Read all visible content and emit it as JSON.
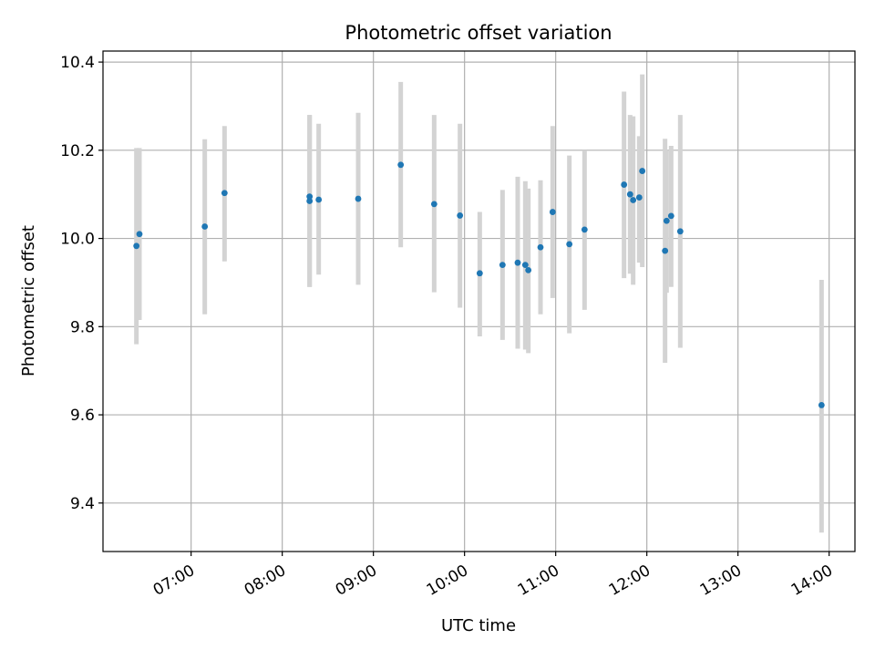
{
  "chart_data": {
    "type": "scatter",
    "title": "Photometric offset variation",
    "xlabel": "UTC time",
    "ylabel": "Photometric offset",
    "x_unit": "time",
    "xlim": [
      "06:02",
      "14:17"
    ],
    "ylim": [
      9.29,
      10.425
    ],
    "grid": true,
    "x_ticks": [
      "07:00",
      "08:00",
      "09:00",
      "10:00",
      "11:00",
      "12:00",
      "13:00",
      "14:00"
    ],
    "y_ticks": [
      "9.4",
      "9.6",
      "9.8",
      "10.0",
      "10.2",
      "10.4"
    ],
    "colors": {
      "marker": "#1f77b4",
      "errorbar": "#d3d3d3",
      "grid": "#b0b0b0"
    },
    "points": [
      {
        "time": "06:24",
        "y": 9.983,
        "y_low": 9.76,
        "y_high": 10.205
      },
      {
        "time": "06:26",
        "y": 10.01,
        "y_low": 9.815,
        "y_high": 10.205
      },
      {
        "time": "07:09",
        "y": 10.027,
        "y_low": 9.828,
        "y_high": 10.225
      },
      {
        "time": "07:22",
        "y": 10.103,
        "y_low": 9.948,
        "y_high": 10.255
      },
      {
        "time": "08:18",
        "y": 10.085,
        "y_low": 9.89,
        "y_high": 10.28
      },
      {
        "time": "08:18",
        "y": 10.095,
        "y_low": 9.89,
        "y_high": 10.28
      },
      {
        "time": "08:24",
        "y": 10.088,
        "y_low": 9.918,
        "y_high": 10.26
      },
      {
        "time": "08:50",
        "y": 10.09,
        "y_low": 9.895,
        "y_high": 10.285
      },
      {
        "time": "09:18",
        "y": 10.167,
        "y_low": 9.98,
        "y_high": 10.355
      },
      {
        "time": "09:40",
        "y": 10.078,
        "y_low": 9.878,
        "y_high": 10.28
      },
      {
        "time": "09:57",
        "y": 10.052,
        "y_low": 9.843,
        "y_high": 10.26
      },
      {
        "time": "10:10",
        "y": 9.921,
        "y_low": 9.778,
        "y_high": 10.06
      },
      {
        "time": "10:25",
        "y": 9.94,
        "y_low": 9.77,
        "y_high": 10.11
      },
      {
        "time": "10:35",
        "y": 9.945,
        "y_low": 9.75,
        "y_high": 10.14
      },
      {
        "time": "10:40",
        "y": 9.94,
        "y_low": 9.748,
        "y_high": 10.13
      },
      {
        "time": "10:42",
        "y": 9.928,
        "y_low": 9.74,
        "y_high": 10.113
      },
      {
        "time": "10:50",
        "y": 9.98,
        "y_low": 9.828,
        "y_high": 10.132
      },
      {
        "time": "10:58",
        "y": 10.06,
        "y_low": 9.865,
        "y_high": 10.255
      },
      {
        "time": "11:09",
        "y": 9.987,
        "y_low": 9.785,
        "y_high": 10.188
      },
      {
        "time": "11:19",
        "y": 10.02,
        "y_low": 9.838,
        "y_high": 10.2
      },
      {
        "time": "11:45",
        "y": 10.122,
        "y_low": 9.91,
        "y_high": 10.333
      },
      {
        "time": "11:49",
        "y": 10.1,
        "y_low": 9.92,
        "y_high": 10.28
      },
      {
        "time": "11:51",
        "y": 10.087,
        "y_low": 9.895,
        "y_high": 10.277
      },
      {
        "time": "11:55",
        "y": 10.093,
        "y_low": 9.945,
        "y_high": 10.232
      },
      {
        "time": "11:57",
        "y": 10.153,
        "y_low": 9.935,
        "y_high": 10.372
      },
      {
        "time": "12:12",
        "y": 9.972,
        "y_low": 9.718,
        "y_high": 10.226
      },
      {
        "time": "12:13",
        "y": 10.04,
        "y_low": 9.877,
        "y_high": 10.2
      },
      {
        "time": "12:16",
        "y": 10.051,
        "y_low": 9.89,
        "y_high": 10.21
      },
      {
        "time": "12:22",
        "y": 10.016,
        "y_low": 9.752,
        "y_high": 10.28
      },
      {
        "time": "13:55",
        "y": 9.622,
        "y_low": 9.333,
        "y_high": 9.906
      }
    ]
  }
}
